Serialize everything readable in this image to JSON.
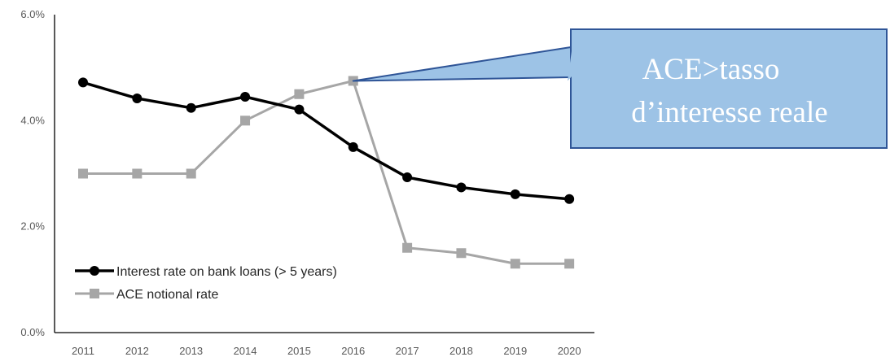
{
  "chart_data": {
    "type": "line",
    "categories": [
      "2011",
      "2012",
      "2013",
      "2014",
      "2015",
      "2016",
      "2017",
      "2018",
      "2019",
      "2020"
    ],
    "series": [
      {
        "name": "Interest rate on bank loans (> 5 years)",
        "values": [
          4.72,
          4.42,
          4.24,
          4.45,
          4.21,
          3.5,
          2.93,
          2.74,
          2.61,
          2.52
        ],
        "color": "#000000",
        "marker": "circle"
      },
      {
        "name": "ACE notional rate",
        "values": [
          3.0,
          3.0,
          3.0,
          4.0,
          4.5,
          4.75,
          1.6,
          1.5,
          1.3,
          1.3
        ],
        "color": "#a6a6a6",
        "marker": "square"
      }
    ],
    "y_ticks": [
      "0.0%",
      "2.0%",
      "4.0%",
      "6.0%"
    ],
    "ylim": [
      0,
      6
    ],
    "legend_position": "bottom-left",
    "grid": false,
    "annotation": {
      "lines": [
        "ACE>tasso",
        "d’interesse reale"
      ],
      "points_to": "2016",
      "fill": "#9dc3e6",
      "border": "#2f5597"
    }
  }
}
